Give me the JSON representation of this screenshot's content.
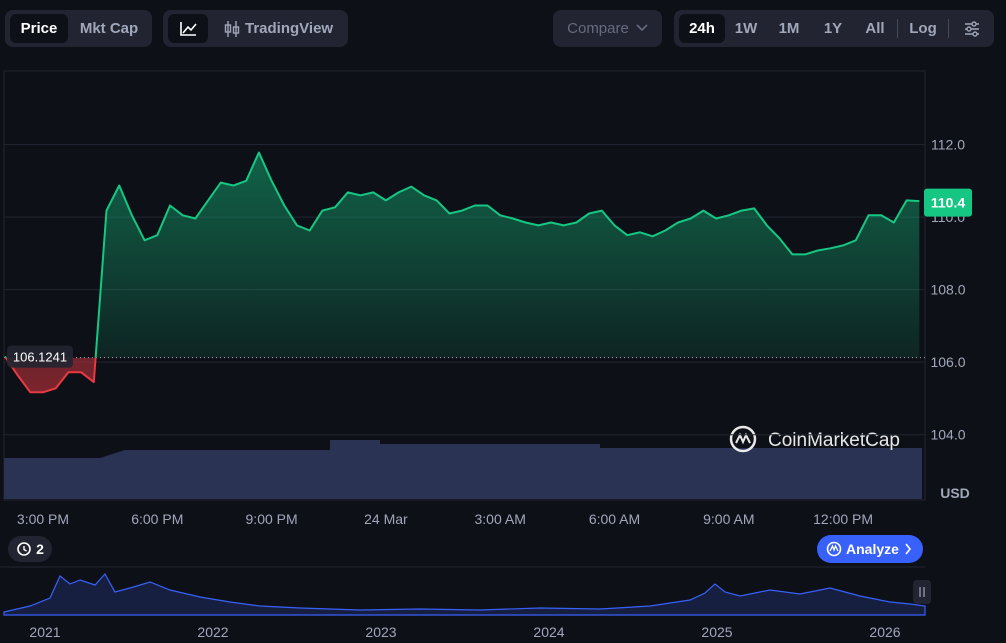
{
  "toolbar": {
    "price": "Price",
    "mkt_cap": "Mkt Cap",
    "tradingview": "TradingView",
    "compare": "Compare",
    "ranges": [
      "24h",
      "1W",
      "1M",
      "1Y",
      "All"
    ],
    "log": "Log"
  },
  "chart_data": {
    "type": "line",
    "categories": [
      null,
      null,
      null,
      "3:00 PM",
      null,
      null,
      null,
      null,
      null,
      null,
      null,
      null,
      "6:00 PM",
      null,
      null,
      null,
      null,
      null,
      null,
      null,
      null,
      "9:00 PM",
      null,
      null,
      null,
      null,
      null,
      null,
      null,
      null,
      "24 Mar",
      null,
      null,
      null,
      null,
      null,
      null,
      null,
      null,
      "3:00 AM",
      null,
      null,
      null,
      null,
      null,
      null,
      null,
      null,
      "6:00 AM",
      null,
      null,
      null,
      null,
      null,
      null,
      null,
      null,
      "9:00 AM",
      null,
      null,
      null,
      null,
      null,
      null,
      null,
      null,
      "12:00 PM",
      null,
      null,
      null,
      null,
      null,
      null
    ],
    "values": [
      106.16,
      105.64,
      105.17,
      105.17,
      105.28,
      105.72,
      105.72,
      105.45,
      110.18,
      110.87,
      110.05,
      109.36,
      109.5,
      110.32,
      110.05,
      109.96,
      110.46,
      110.95,
      110.87,
      111.0,
      111.78,
      111.0,
      110.32,
      109.77,
      109.63,
      110.18,
      110.27,
      110.68,
      110.6,
      110.68,
      110.46,
      110.68,
      110.84,
      110.6,
      110.46,
      110.1,
      110.18,
      110.32,
      110.32,
      110.05,
      109.96,
      109.85,
      109.77,
      109.85,
      109.77,
      109.85,
      110.1,
      110.18,
      109.77,
      109.5,
      109.58,
      109.47,
      109.63,
      109.85,
      109.96,
      110.18,
      109.96,
      110.05,
      110.18,
      110.24,
      109.77,
      109.41,
      108.97,
      108.97,
      109.08,
      109.14,
      109.22,
      109.36,
      110.05,
      110.05,
      109.85,
      110.46,
      110.44
    ],
    "up_color": "#16c784",
    "down_color": "#ea3943",
    "reference": 106.1241,
    "last_price": 110.4,
    "ylim": [
      102.2,
      114.0
    ],
    "yticks": [
      {
        "value": 104,
        "label": "104.0"
      },
      {
        "value": 106,
        "label": "106.0"
      },
      {
        "value": 108,
        "label": "108.0"
      },
      {
        "value": 110,
        "label": "110.0"
      },
      {
        "value": 112,
        "label": "112.0"
      }
    ],
    "grid": true,
    "currency": "USD",
    "watermark": "CoinMarketCap"
  },
  "navigator": {
    "years": [
      "2021",
      "2022",
      "2023",
      "2024",
      "2025",
      "2026"
    ]
  },
  "badge": {
    "count": "2"
  },
  "analyze": "Analyze"
}
